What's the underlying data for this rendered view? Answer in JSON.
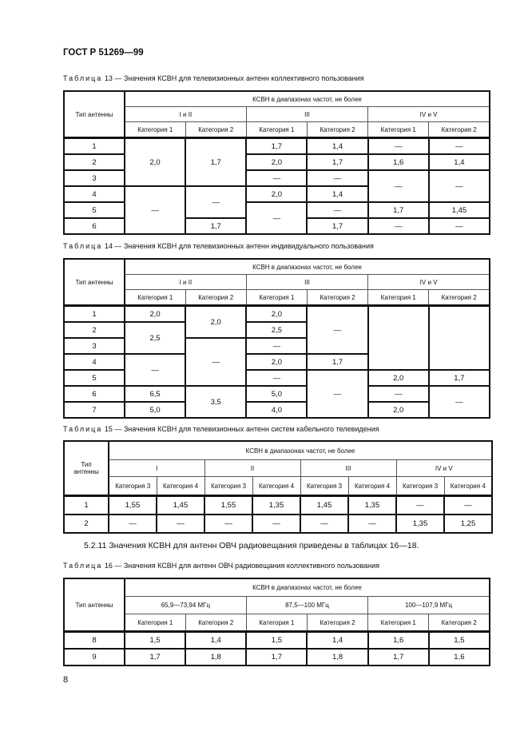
{
  "header": "ГОСТ Р 51269—99",
  "page_number": "8",
  "paragraph": "5.2.11 Значения КСВН для антенн ОВЧ радиовещания приведены в таблицах 16—18.",
  "common": {
    "table_word": "Таблица",
    "type_label": "Тип антенны",
    "ksvn": "КСВН в диапазонах частот, не более"
  },
  "t13": {
    "num": "13",
    "title": " — Значения КСВН для телевизионных антенн коллективного пользования",
    "bands": [
      "I и II",
      "III",
      "IV и V"
    ],
    "cats": [
      "Категория 1",
      "Категория 2",
      "Категория 1",
      "Категория 2",
      "Категория 1",
      "Категория 2"
    ],
    "rows": [
      [
        "1",
        "2,0",
        "1,7",
        "1,7",
        "1,4",
        "—",
        "—"
      ],
      [
        "2",
        "2,0",
        "1,7",
        "1,6",
        "1,4"
      ],
      [
        "3",
        "—",
        "—",
        "—",
        "—"
      ],
      [
        "4",
        "—",
        "—",
        "2,0",
        "1,4"
      ],
      [
        "5",
        "—",
        "—",
        "1,7",
        "1,45"
      ],
      [
        "6",
        "1,7",
        "1,7",
        "—",
        "—"
      ]
    ]
  },
  "t14": {
    "num": "14",
    "title": " — Значения КСВН для телевизионных антенн индивидуального пользования",
    "bands": [
      "I и II",
      "III",
      "IV и V"
    ],
    "cats": [
      "Категория 1",
      "Категория 2",
      "Категория 1",
      "Категория 2",
      "Категория 1",
      "Категория 2"
    ],
    "rows": [
      [
        "1",
        "2,0",
        "2,0",
        "2,0",
        "—",
        "",
        ""
      ],
      [
        "2",
        "2,5",
        "2,5"
      ],
      [
        "3",
        "—",
        "—"
      ],
      [
        "4",
        "—",
        "2,0",
        "1,7"
      ],
      [
        "5",
        "—",
        "—",
        "2,0",
        "1,7"
      ],
      [
        "6",
        "6,5",
        "3,5",
        "5,0",
        "—",
        "—"
      ],
      [
        "7",
        "5,0",
        "4,0",
        "2,0"
      ]
    ]
  },
  "t15": {
    "num": "15",
    "title": " — Значения КСВН для телевизионных антенн систем кабельного телевидения",
    "type_label": "Тип антенны",
    "bands": [
      "I",
      "II",
      "III",
      "IV и V"
    ],
    "cats": [
      "Категория 3",
      "Категория 4",
      "Категория 3",
      "Категория 4",
      "Категория 3",
      "Категория 4",
      "Категория 3",
      "Категория 4"
    ],
    "rows": [
      [
        "1",
        "1,55",
        "1,45",
        "1,55",
        "1,35",
        "1,45",
        "1,35",
        "—",
        "—"
      ],
      [
        "2",
        "—",
        "—",
        "—",
        "—",
        "—",
        "—",
        "1,35",
        "1,25"
      ]
    ]
  },
  "t16": {
    "num": "16",
    "title": " — Значения КСВН для антенн ОВЧ радиовещания коллективного пользования",
    "bands": [
      "65,9—73,94 МГц",
      "87,5—100 МГц",
      "100—107,9 МГц"
    ],
    "cats": [
      "Категория 1",
      "Категория 2",
      "Категория 1",
      "Категория 2",
      "Категория 1",
      "Категория 2"
    ],
    "rows": [
      [
        "8",
        "1,5",
        "1,4",
        "1,5",
        "1,4",
        "1,6",
        "1,5"
      ],
      [
        "9",
        "1,7",
        "1,8",
        "1,7",
        "1,8",
        "1,7",
        "1,6"
      ]
    ]
  }
}
